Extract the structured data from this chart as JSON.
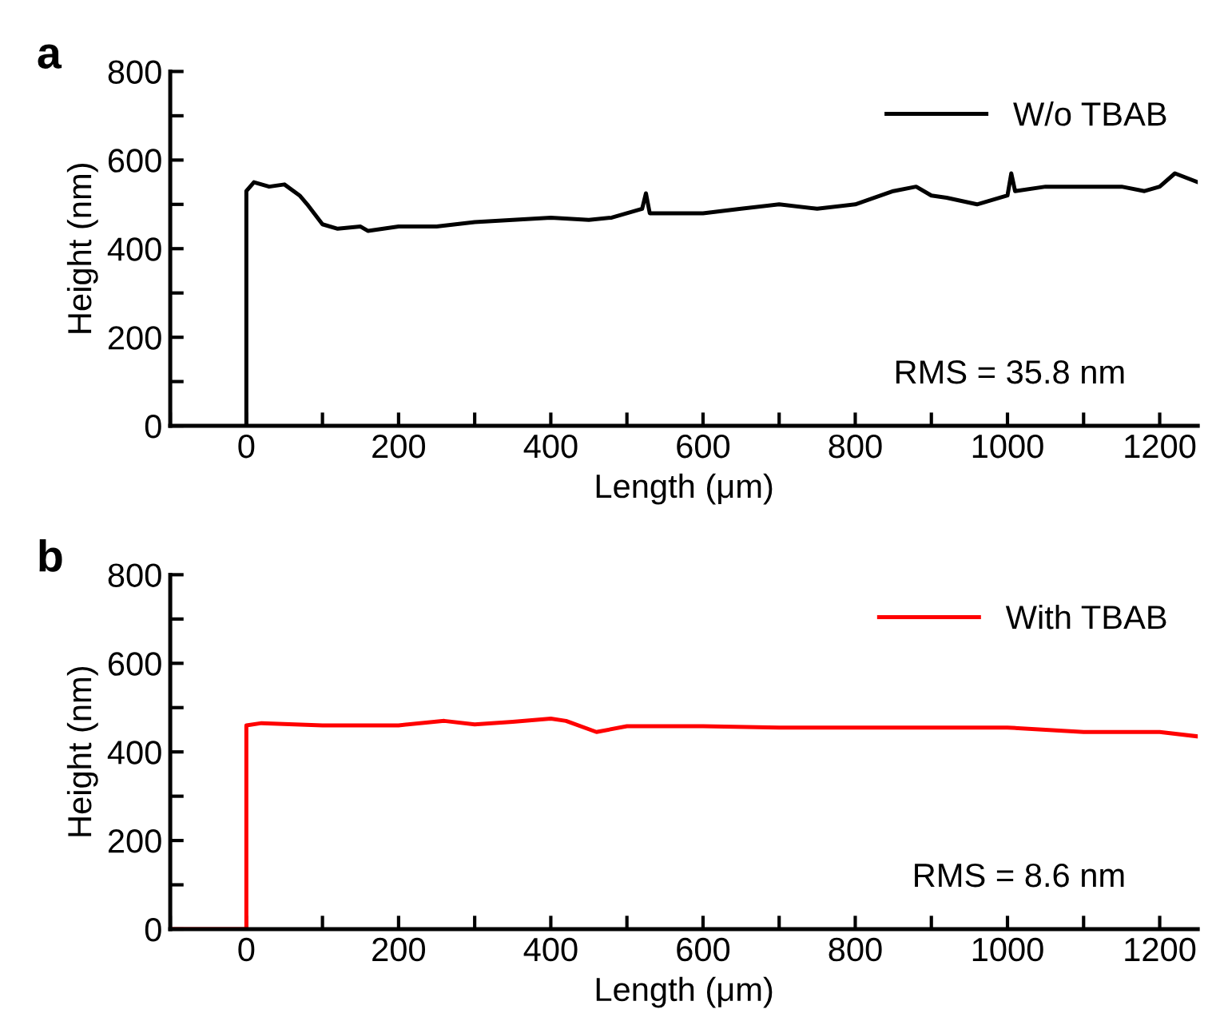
{
  "chart_data": [
    {
      "type": "line",
      "annotations": [
        "a",
        "RMS = 35.8 nm"
      ],
      "xlabel": "Length (μm)",
      "ylabel": "Height (nm)",
      "legend": "top right",
      "grid": false,
      "series": [
        {
          "name": "W/o TBAB",
          "color": "#000000",
          "x": [
            0,
            0,
            10,
            20,
            30,
            50,
            70,
            80,
            100,
            120,
            150,
            160,
            200,
            250,
            300,
            350,
            400,
            450,
            480,
            500,
            520,
            525,
            530,
            560,
            600,
            650,
            700,
            750,
            800,
            850,
            880,
            900,
            920,
            960,
            1000,
            1005,
            1010,
            1050,
            1100,
            1150,
            1180,
            1200,
            1220,
            1250
          ],
          "values": [
            0,
            530,
            550,
            545,
            540,
            545,
            520,
            500,
            455,
            445,
            450,
            440,
            450,
            450,
            460,
            465,
            470,
            465,
            470,
            480,
            490,
            525,
            480,
            480,
            480,
            490,
            500,
            490,
            500,
            530,
            540,
            520,
            515,
            500,
            520,
            570,
            530,
            540,
            540,
            540,
            530,
            540,
            570,
            550
          ]
        }
      ],
      "xlim": [
        -100,
        1250
      ],
      "ylim": [
        0,
        800
      ],
      "xticks": [
        {
          "value": -100,
          "label": null
        },
        0,
        {
          "value": 100,
          "label": null
        },
        200,
        {
          "value": 300,
          "label": null
        },
        400,
        {
          "value": 500,
          "label": null
        },
        600,
        {
          "value": 700,
          "label": null
        },
        800,
        {
          "value": 900,
          "label": null
        },
        1000,
        {
          "value": 1100,
          "label": null
        },
        1200
      ],
      "yticks": [
        0,
        {
          "value": 100,
          "label": null
        },
        200,
        {
          "value": 300,
          "label": null
        },
        400,
        {
          "value": 500,
          "label": null
        },
        600,
        {
          "value": 700,
          "label": null
        },
        800
      ]
    },
    {
      "type": "line",
      "annotations": [
        "b",
        "RMS = 8.6 nm"
      ],
      "xlabel": "Length (μm)",
      "ylabel": "Height (nm)",
      "legend": "top right",
      "grid": false,
      "series": [
        {
          "name": "With TBAB",
          "color": "#ff0000",
          "x": [
            -100,
            0,
            0,
            20,
            100,
            200,
            260,
            300,
            350,
            400,
            420,
            460,
            500,
            600,
            700,
            800,
            900,
            1000,
            1100,
            1150,
            1200,
            1250
          ],
          "values": [
            0,
            0,
            460,
            465,
            460,
            460,
            470,
            462,
            468,
            475,
            470,
            445,
            458,
            458,
            455,
            455,
            455,
            455,
            445,
            445,
            445,
            435
          ]
        }
      ],
      "xlim": [
        -100,
        1250
      ],
      "ylim": [
        0,
        800
      ],
      "xticks": [
        {
          "value": -100,
          "label": null
        },
        0,
        {
          "value": 100,
          "label": null
        },
        200,
        {
          "value": 300,
          "label": null
        },
        400,
        {
          "value": 500,
          "label": null
        },
        600,
        {
          "value": 700,
          "label": null
        },
        800,
        {
          "value": 900,
          "label": null
        },
        1000,
        {
          "value": 1100,
          "label": null
        },
        1200
      ],
      "yticks": [
        0,
        {
          "value": 100,
          "label": null
        },
        200,
        {
          "value": 300,
          "label": null
        },
        400,
        {
          "value": 500,
          "label": null
        },
        600,
        {
          "value": 700,
          "label": null
        },
        800
      ]
    }
  ]
}
